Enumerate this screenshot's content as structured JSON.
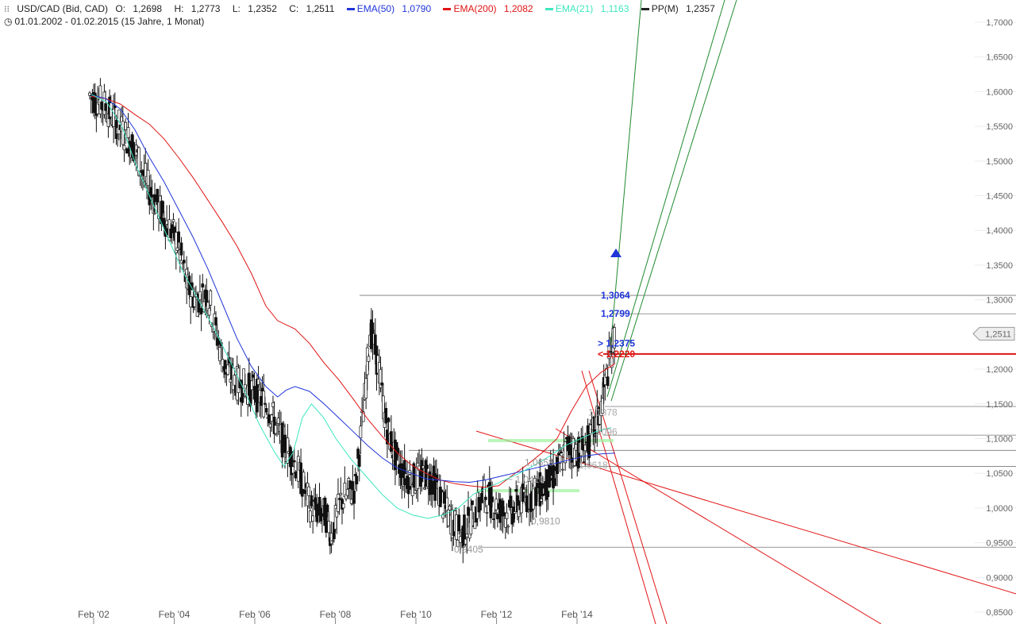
{
  "header": {
    "symbol": "USD/CAD (Bid, CAD)",
    "ohlc": [
      {
        "label": "O:",
        "value": "1,2698"
      },
      {
        "label": "H:",
        "value": "1,2773"
      },
      {
        "label": "L:",
        "value": "1,2352"
      },
      {
        "label": "C:",
        "value": "1,2511"
      }
    ],
    "indicators": [
      {
        "label": "EMA(50)",
        "value": "1,0790",
        "color": "#1f35d9"
      },
      {
        "label": "EMA(200)",
        "value": "1,2082",
        "color": "#e01414"
      },
      {
        "label": "EMA(21)",
        "value": "1,1163",
        "color": "#3ee6c0"
      },
      {
        "label": "PP(M)",
        "value": "1,2357",
        "color": "#222222"
      }
    ],
    "period": "01.01.2002 - 01.02.2015 (15 Jahre, 1 Monat)"
  },
  "chart_data": {
    "type": "candlestick",
    "y_ticks": [
      "0,8500",
      "0,9000",
      "0,9500",
      "1,0000",
      "1,0500",
      "1,1000",
      "1,1500",
      "1,2000",
      "1,2500",
      "1,3000",
      "1,3500",
      "1,4000",
      "1,4500",
      "1,5000",
      "1,5500",
      "1,6000",
      "1,6500",
      "1,7000"
    ],
    "x_ticks": [
      "Feb '02",
      "Feb '04",
      "Feb '06",
      "Feb '08",
      "Feb '10",
      "Feb '12",
      "Feb '14"
    ],
    "ylim": [
      0.85,
      1.72
    ],
    "current_price": {
      "value": 1.2511,
      "label": "1,2511"
    },
    "horizontal_levels": [
      1.3064,
      1.2799,
      1.1463,
      1.105,
      1.083,
      1.06,
      0.9435
    ],
    "pivot_line": {
      "value": 1.222,
      "color": "#e01414"
    },
    "level_labels": [
      {
        "text": "1,3064",
        "value": 1.3064,
        "color": "#1f35d9"
      },
      {
        "text": "1,2799",
        "value": 1.2799,
        "color": "#1f35d9"
      },
      {
        "text": "> 1,2375",
        "value": 1.2375,
        "color": "#1f35d9"
      },
      {
        "text": "< 1,2220",
        "value": 1.222,
        "color": "#e01414"
      },
      {
        "text": "1,1378",
        "value": 1.1378,
        "color": "#aaaaaa"
      },
      {
        "text": "1,1096",
        "value": 1.1096,
        "color": "#aaaaaa"
      },
      {
        "text": "1,0658",
        "value": 1.0658,
        "color": "#999999"
      },
      {
        "text": "~ 1,0410",
        "value": 1.041,
        "color": "#999999"
      },
      {
        "text": "1,0618",
        "value": 1.0618,
        "color": "#aaaaaa"
      },
      {
        "text": "0,9810",
        "value": 0.981,
        "color": "#999999"
      },
      {
        "text": "0,9405",
        "value": 0.9405,
        "color": "#999999"
      }
    ],
    "ema200": [
      [
        0.0,
        1.593
      ],
      [
        0.5,
        1.59
      ],
      [
        1.0,
        1.582
      ],
      [
        1.5,
        1.567
      ],
      [
        2.0,
        1.553
      ],
      [
        2.5,
        1.532
      ],
      [
        3.0,
        1.505
      ],
      [
        3.5,
        1.476
      ],
      [
        4.0,
        1.444
      ],
      [
        4.5,
        1.412
      ],
      [
        5.0,
        1.378
      ],
      [
        5.5,
        1.338
      ],
      [
        6.0,
        1.291
      ],
      [
        6.4,
        1.27
      ],
      [
        7.0,
        1.258
      ],
      [
        7.5,
        1.237
      ],
      [
        8.0,
        1.209
      ],
      [
        8.5,
        1.185
      ],
      [
        9.0,
        1.157
      ],
      [
        9.5,
        1.128
      ],
      [
        10.0,
        1.103
      ],
      [
        10.5,
        1.08
      ],
      [
        11.0,
        1.062
      ],
      [
        11.5,
        1.05
      ],
      [
        12.0,
        1.04
      ],
      [
        12.5,
        1.035
      ],
      [
        13.0,
        1.032
      ],
      [
        13.5,
        1.03
      ],
      [
        14.0,
        1.032
      ],
      [
        14.5,
        1.048
      ],
      [
        15.0,
        1.063
      ],
      [
        15.5,
        1.08
      ],
      [
        16.0,
        1.1
      ],
      [
        16.5,
        1.14
      ],
      [
        17.0,
        1.175
      ],
      [
        17.5,
        1.195
      ],
      [
        18.0,
        1.208
      ]
    ],
    "ema50": [
      [
        0.0,
        1.595
      ],
      [
        0.5,
        1.59
      ],
      [
        1.0,
        1.575
      ],
      [
        1.5,
        1.545
      ],
      [
        2.0,
        1.505
      ],
      [
        2.5,
        1.47
      ],
      [
        3.0,
        1.43
      ],
      [
        3.5,
        1.39
      ],
      [
        4.0,
        1.345
      ],
      [
        4.5,
        1.295
      ],
      [
        5.0,
        1.245
      ],
      [
        5.5,
        1.204
      ],
      [
        6.0,
        1.175
      ],
      [
        6.4,
        1.16
      ],
      [
        6.7,
        1.17
      ],
      [
        7.0,
        1.175
      ],
      [
        7.5,
        1.168
      ],
      [
        8.0,
        1.15
      ],
      [
        8.5,
        1.13
      ],
      [
        9.0,
        1.11
      ],
      [
        9.5,
        1.09
      ],
      [
        10.0,
        1.072
      ],
      [
        10.5,
        1.058
      ],
      [
        11.0,
        1.05
      ],
      [
        11.5,
        1.042
      ],
      [
        12.0,
        1.04
      ],
      [
        12.5,
        1.038
      ],
      [
        13.0,
        1.037
      ],
      [
        13.5,
        1.04
      ],
      [
        14.0,
        1.045
      ],
      [
        14.5,
        1.05
      ],
      [
        15.0,
        1.055
      ],
      [
        15.5,
        1.06
      ],
      [
        16.0,
        1.065
      ],
      [
        16.5,
        1.07
      ],
      [
        17.0,
        1.075
      ],
      [
        17.5,
        1.078
      ],
      [
        18.0,
        1.079
      ]
    ],
    "ema21": [
      [
        0.0,
        1.596
      ],
      [
        0.5,
        1.585
      ],
      [
        1.0,
        1.55
      ],
      [
        1.5,
        1.49
      ],
      [
        2.0,
        1.44
      ],
      [
        2.5,
        1.39
      ],
      [
        3.0,
        1.34
      ],
      [
        3.5,
        1.3
      ],
      [
        4.0,
        1.26
      ],
      [
        4.5,
        1.215
      ],
      [
        5.0,
        1.17
      ],
      [
        5.5,
        1.12
      ],
      [
        6.0,
        1.08
      ],
      [
        6.3,
        1.06
      ],
      [
        6.6,
        1.08
      ],
      [
        6.9,
        1.13
      ],
      [
        7.2,
        1.15
      ],
      [
        7.6,
        1.13
      ],
      [
        8.0,
        1.1
      ],
      [
        8.5,
        1.07
      ],
      [
        9.0,
        1.045
      ],
      [
        9.5,
        1.02
      ],
      [
        10.0,
        1.0
      ],
      [
        10.5,
        0.99
      ],
      [
        11.0,
        0.985
      ],
      [
        11.5,
        0.99
      ],
      [
        12.0,
        1.0
      ],
      [
        12.5,
        1.02
      ],
      [
        13.0,
        1.03
      ],
      [
        13.5,
        1.04
      ],
      [
        14.0,
        1.05
      ],
      [
        14.5,
        1.062
      ],
      [
        15.0,
        1.075
      ],
      [
        15.5,
        1.09
      ],
      [
        16.0,
        1.1
      ],
      [
        16.5,
        1.11
      ],
      [
        17.0,
        1.116
      ]
    ],
    "candles_path": [
      [
        0,
        1.595
      ],
      [
        0.5,
        1.58
      ],
      [
        1.0,
        1.55
      ],
      [
        1.5,
        1.52
      ],
      [
        2.0,
        1.46
      ],
      [
        2.5,
        1.42
      ],
      [
        3.0,
        1.38
      ],
      [
        3.3,
        1.32
      ],
      [
        3.6,
        1.3
      ],
      [
        4.0,
        1.31
      ],
      [
        4.3,
        1.25
      ],
      [
        4.6,
        1.2
      ],
      [
        5.0,
        1.18
      ],
      [
        5.5,
        1.17
      ],
      [
        6.0,
        1.15
      ],
      [
        6.5,
        1.1
      ],
      [
        7.0,
        1.06
      ],
      [
        7.5,
        1.0
      ],
      [
        8.0,
        0.99
      ],
      [
        8.2,
        0.96
      ],
      [
        8.5,
        1.01
      ],
      [
        9.0,
        1.03
      ],
      [
        9.3,
        1.15
      ],
      [
        9.5,
        1.26
      ],
      [
        9.8,
        1.2
      ],
      [
        10.0,
        1.13
      ],
      [
        10.3,
        1.08
      ],
      [
        10.6,
        1.05
      ],
      [
        11.0,
        1.04
      ],
      [
        11.4,
        1.05
      ],
      [
        11.8,
        1.03
      ],
      [
        12.0,
        1.0
      ],
      [
        12.3,
        0.98
      ],
      [
        12.6,
        0.96
      ],
      [
        13.0,
        0.99
      ],
      [
        13.4,
        1.02
      ],
      [
        13.8,
        1.0
      ],
      [
        14.2,
        0.99
      ],
      [
        14.6,
        1.01
      ],
      [
        15.0,
        1.02
      ],
      [
        15.4,
        1.03
      ],
      [
        15.8,
        1.05
      ],
      [
        16.2,
        1.09
      ],
      [
        16.6,
        1.08
      ],
      [
        17.0,
        1.1
      ],
      [
        17.3,
        1.14
      ],
      [
        17.6,
        1.21
      ],
      [
        17.8,
        1.251
      ]
    ]
  }
}
